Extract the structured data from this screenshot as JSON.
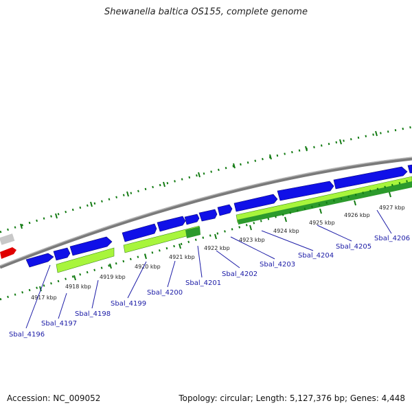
{
  "title": "Shewanella baltica OS155, complete genome",
  "footer": {
    "accession": "Accession: NC_009052",
    "summary": "Topology: circular; Length: 5,127,376 bp; Genes: 4,448"
  },
  "colors": {
    "forward_cds": "#1010e8",
    "reverse_cds": "#a8f53c",
    "reverse_cds_dark": "#2c9a2c",
    "backbone": "#808080",
    "tick": "#117a11",
    "other_gene": "#e00000",
    "other_gene_grey": "#c8c8c8",
    "link": "#1a1aa6"
  },
  "kbp_labels": [
    "4917 kbp",
    "4918 kbp",
    "4919 kbp",
    "4920 kbp",
    "4921 kbp",
    "4922 kbp",
    "4923 kbp",
    "4924 kbp",
    "4925 kbp",
    "4926 kbp",
    "4927 kbp"
  ],
  "genes": [
    "Sbal_4196",
    "Sbal_4197",
    "Sbal_4198",
    "Sbal_4199",
    "Sbal_4200",
    "Sbal_4201",
    "Sbal_4202",
    "Sbal_4203",
    "Sbal_4204",
    "Sbal_4205",
    "Sbal_4206"
  ]
}
